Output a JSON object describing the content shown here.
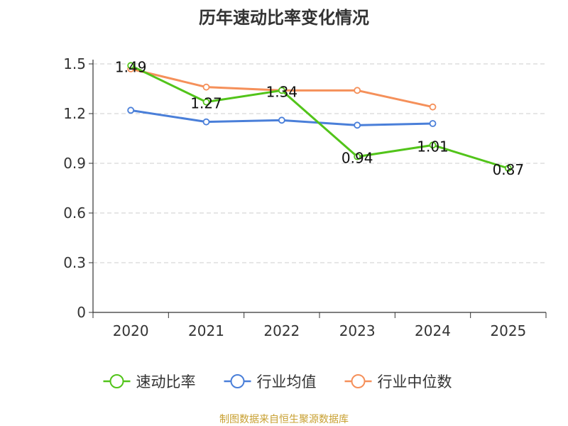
{
  "chart_data": {
    "type": "line",
    "title": "历年速动比率变化情况",
    "categories": [
      "2020",
      "2021",
      "2022",
      "2023",
      "2024",
      "2025"
    ],
    "y_ticks": [
      "0",
      "0.3",
      "0.6",
      "0.9",
      "1.2",
      "1.5"
    ],
    "ylim": [
      0,
      1.5
    ],
    "grid": true,
    "legend_position": "bottom",
    "series": [
      {
        "name": "速动比率",
        "color": "#52c41a",
        "values": [
          1.49,
          1.27,
          1.34,
          0.94,
          1.01,
          0.87
        ],
        "labels": [
          "1.49",
          "1.27",
          "1.34",
          "0.94",
          "1.01",
          "0.87"
        ],
        "show_labels": true
      },
      {
        "name": "行业均值",
        "color": "#4a7fd9",
        "values": [
          1.22,
          1.15,
          1.16,
          1.13,
          1.14,
          null
        ],
        "show_labels": false
      },
      {
        "name": "行业中位数",
        "color": "#f5905a",
        "values": [
          1.47,
          1.36,
          1.34,
          1.34,
          1.24,
          null
        ],
        "show_labels": false
      }
    ],
    "source": "制图数据来自恒生聚源数据库"
  }
}
